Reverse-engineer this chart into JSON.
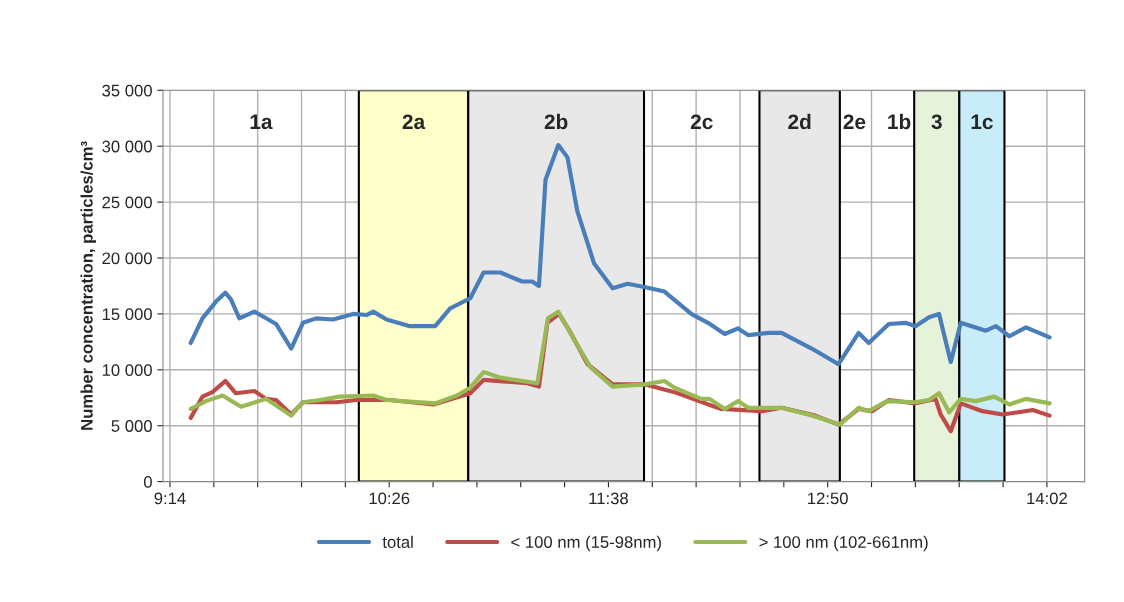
{
  "chart_data": {
    "type": "line",
    "ylabel": "Number concentration, particles/cm³",
    "xlim": [
      9.195,
      14.24
    ],
    "xticks": [
      {
        "value": 9.2333,
        "label": "9:14"
      },
      {
        "value": 9.4733,
        "label": null
      },
      {
        "value": 9.7133,
        "label": null
      },
      {
        "value": 9.9533,
        "label": null
      },
      {
        "value": 10.1933,
        "label": null
      },
      {
        "value": 10.4333,
        "label": "10:26"
      },
      {
        "value": 10.6733,
        "label": null
      },
      {
        "value": 10.9133,
        "label": null
      },
      {
        "value": 11.1533,
        "label": null
      },
      {
        "value": 11.3933,
        "label": null
      },
      {
        "value": 11.6333,
        "label": "11:38"
      },
      {
        "value": 11.8733,
        "label": null
      },
      {
        "value": 12.1133,
        "label": null
      },
      {
        "value": 12.3533,
        "label": null
      },
      {
        "value": 12.5933,
        "label": null
      },
      {
        "value": 12.8333,
        "label": "12:50"
      },
      {
        "value": 13.0733,
        "label": null
      },
      {
        "value": 13.3133,
        "label": null
      },
      {
        "value": 13.5533,
        "label": null
      },
      {
        "value": 13.7933,
        "label": null
      },
      {
        "value": 14.0333,
        "label": "14:02"
      }
    ],
    "ylim": [
      0,
      35000
    ],
    "yticks": [
      {
        "value": 0,
        "label": "0"
      },
      {
        "value": 5000,
        "label": "5 000"
      },
      {
        "value": 10000,
        "label": "10 000"
      },
      {
        "value": 15000,
        "label": "15 000"
      },
      {
        "value": 20000,
        "label": "20 000"
      },
      {
        "value": 25000,
        "label": "25 000"
      },
      {
        "value": 30000,
        "label": "30 000"
      },
      {
        "value": 35000,
        "label": "35 000"
      }
    ],
    "grid": true,
    "legend": "bottom",
    "line_style": "solid",
    "marker": "none",
    "series": [
      {
        "name": "total",
        "color": "#4a7ebb",
        "x": [
          9.347,
          9.411,
          9.485,
          9.536,
          9.567,
          9.613,
          9.695,
          9.75,
          9.814,
          9.897,
          9.961,
          10.034,
          10.126,
          10.236,
          10.309,
          10.346,
          10.419,
          10.547,
          10.685,
          10.767,
          10.877,
          10.95,
          11.042,
          11.161,
          11.216,
          11.253,
          11.289,
          11.359,
          11.409,
          11.463,
          11.555,
          11.656,
          11.738,
          11.83,
          11.94,
          12.087,
          12.178,
          12.27,
          12.343,
          12.398,
          12.508,
          12.581,
          12.746,
          12.893,
          13.003,
          13.058,
          13.168,
          13.259,
          13.314,
          13.388,
          13.443,
          13.507,
          13.562,
          13.699,
          13.754,
          13.828,
          13.919,
          14.048
        ],
        "values": [
          12400,
          14600,
          16100,
          16900,
          16300,
          14600,
          15200,
          14700,
          14100,
          11900,
          14200,
          14600,
          14500,
          15000,
          14900,
          15200,
          14500,
          13900,
          13900,
          15500,
          16400,
          18700,
          18700,
          17900,
          17900,
          17500,
          27000,
          30100,
          29000,
          24200,
          19500,
          17300,
          17700,
          17400,
          17000,
          15000,
          14200,
          13200,
          13700,
          13100,
          13300,
          13300,
          11900,
          10500,
          13300,
          12400,
          14100,
          14200,
          13900,
          14700,
          15000,
          10700,
          14200,
          13500,
          13900,
          13000,
          13800,
          12900
        ]
      },
      {
        "name": "< 100 nm (15-98nm)",
        "color": "#be4b48",
        "x": [
          9.347,
          9.411,
          9.466,
          9.536,
          9.594,
          9.695,
          9.759,
          9.814,
          9.897,
          9.961,
          10.144,
          10.254,
          10.437,
          10.675,
          10.877,
          10.95,
          11.189,
          11.253,
          11.299,
          11.363,
          11.427,
          11.519,
          11.656,
          11.83,
          11.995,
          12.196,
          12.251,
          12.471,
          12.581,
          12.764,
          12.893,
          13.003,
          13.076,
          13.168,
          13.314,
          13.424,
          13.452,
          13.507,
          13.562,
          13.681,
          13.791,
          13.956,
          14.048
        ],
        "values": [
          5700,
          7600,
          8000,
          9000,
          7900,
          8100,
          7400,
          7300,
          6000,
          7100,
          7100,
          7300,
          7300,
          6900,
          7900,
          9100,
          8800,
          8500,
          14200,
          15000,
          13300,
          10500,
          8700,
          8700,
          8000,
          6800,
          6500,
          6300,
          6600,
          5900,
          5100,
          6500,
          6300,
          7300,
          7000,
          7400,
          6000,
          4500,
          7000,
          6300,
          6000,
          6400,
          5900
        ]
      },
      {
        "name": "> 100 nm (102-661nm)",
        "color": "#98b954",
        "x": [
          9.347,
          9.43,
          9.521,
          9.622,
          9.759,
          9.897,
          9.961,
          10.053,
          10.162,
          10.346,
          10.419,
          10.685,
          10.804,
          10.877,
          10.95,
          11.042,
          11.244,
          11.302,
          11.359,
          11.445,
          11.537,
          11.656,
          11.83,
          11.94,
          11.995,
          12.141,
          12.187,
          12.27,
          12.343,
          12.398,
          12.581,
          12.728,
          12.902,
          13.003,
          13.058,
          13.158,
          13.314,
          13.388,
          13.443,
          13.498,
          13.562,
          13.644,
          13.745,
          13.828,
          13.919,
          14.048
        ],
        "values": [
          6500,
          7200,
          7700,
          6700,
          7400,
          5900,
          7100,
          7300,
          7600,
          7700,
          7300,
          7000,
          7700,
          8400,
          9800,
          9300,
          8800,
          14600,
          15200,
          12700,
          10200,
          8500,
          8700,
          9000,
          8400,
          7400,
          7400,
          6500,
          7200,
          6600,
          6600,
          6000,
          5100,
          6600,
          6300,
          7200,
          7100,
          7300,
          7900,
          6200,
          7400,
          7200,
          7600,
          6900,
          7400,
          7000
        ]
      }
    ],
    "bands": [
      {
        "axis": "x",
        "from": 10.267,
        "to": 10.866,
        "label": "2a",
        "color": "#ffffcc"
      },
      {
        "axis": "x",
        "from": 10.866,
        "to": 11.828,
        "label": "2b",
        "color": "#e8e8e8"
      },
      {
        "axis": "x",
        "from": 12.46,
        "to": 12.9,
        "label": "2d",
        "color": "#e8e8e8"
      },
      {
        "axis": "x",
        "from": 13.307,
        "to": 13.554,
        "label": "3",
        "color": "#e6f2d9"
      },
      {
        "axis": "x",
        "from": 13.554,
        "to": 13.801,
        "label": "1c",
        "color": "#c8ecf8"
      }
    ],
    "annotations": [
      "1a",
      "2c",
      "2e",
      "1b"
    ]
  }
}
